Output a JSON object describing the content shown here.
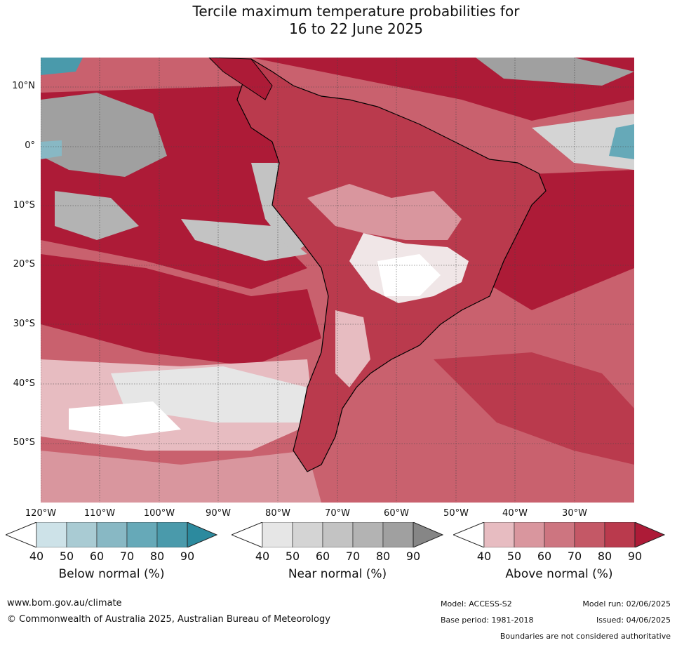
{
  "title_line1": "Tercile maximum temperature probabilities for",
  "title_line2": "16 to 22 June 2025",
  "lat_labels": [
    "10°N",
    "0°",
    "10°S",
    "20°S",
    "30°S",
    "40°S",
    "50°S"
  ],
  "lon_labels": [
    "120°W",
    "110°W",
    "100°W",
    "90°W",
    "80°W",
    "70°W",
    "60°W",
    "50°W",
    "40°W",
    "30°W"
  ],
  "colorbars": [
    {
      "label": "Below normal (%)",
      "ticks": [
        "40",
        "50",
        "60",
        "70",
        "80",
        "90"
      ],
      "colors": [
        "#ffffff",
        "#cde2e8",
        "#a9cbd3",
        "#88b8c4",
        "#66a9b8",
        "#4a9aab",
        "#2c8a9e"
      ]
    },
    {
      "label": "Near normal (%)",
      "ticks": [
        "40",
        "50",
        "60",
        "70",
        "80",
        "90"
      ],
      "colors": [
        "#ffffff",
        "#e6e6e6",
        "#d4d4d4",
        "#c3c3c3",
        "#b3b3b3",
        "#a0a0a0",
        "#868686"
      ]
    },
    {
      "label": "Above normal (%)",
      "ticks": [
        "40",
        "50",
        "60",
        "70",
        "80",
        "90"
      ],
      "colors": [
        "#ffffff",
        "#e7bcc1",
        "#d9969e",
        "#cd7580",
        "#c45866",
        "#ba3a4d",
        "#ad1b37"
      ]
    }
  ],
  "footer": {
    "url": "www.bom.gov.au/climate",
    "copyright": "© Commonwealth of Australia 2025, Australian Bureau of Meteorology",
    "model": "Model: ACCESS-S2",
    "model_run": "Model run: 02/06/2025",
    "base_period": "Base period: 1981-2018",
    "issued": "Issued: 04/06/2025",
    "disclaimer": "Boundaries are not considered authoritative"
  }
}
